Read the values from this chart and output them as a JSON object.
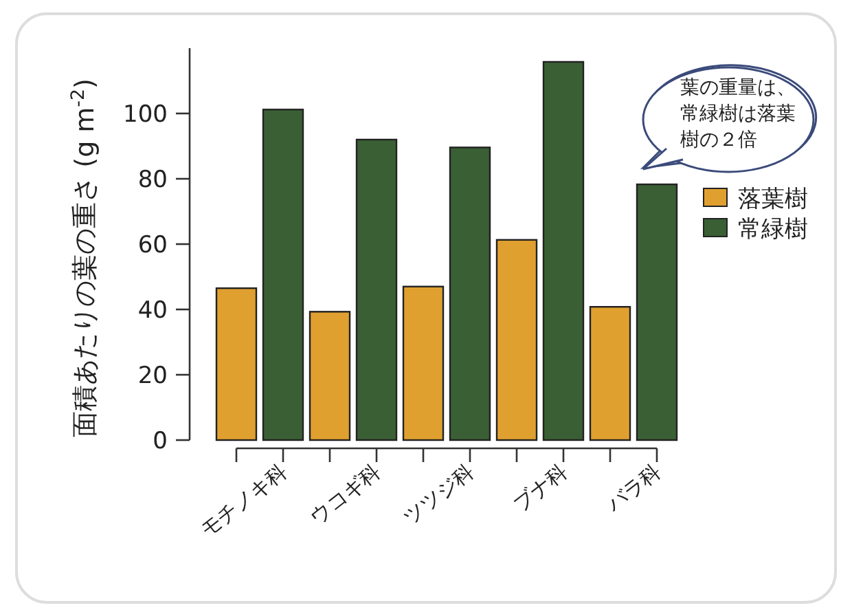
{
  "chart_data": {
    "type": "bar",
    "ylabel": "面積あたりの葉の重さ (g m$^{-2}$)",
    "categories": [
      "モチノキ科",
      "ウコギ科",
      "ツツジ科",
      "ブナ科",
      "バラ科"
    ],
    "series": [
      {
        "name": "落葉樹",
        "color": "#e0a030",
        "values": [
          46.5,
          39.3,
          47,
          61.3,
          40.8
        ]
      },
      {
        "name": "常緑樹",
        "color": "#3a5f35",
        "values": [
          101.2,
          92,
          89.6,
          115.8,
          78.3
        ]
      }
    ],
    "ylim": [
      0,
      120
    ],
    "yticks": [
      0,
      20,
      40,
      60,
      80,
      100
    ],
    "legend": "right",
    "annotations": [
      "葉の重量は、常緑樹は落葉樹の２倍"
    ]
  }
}
